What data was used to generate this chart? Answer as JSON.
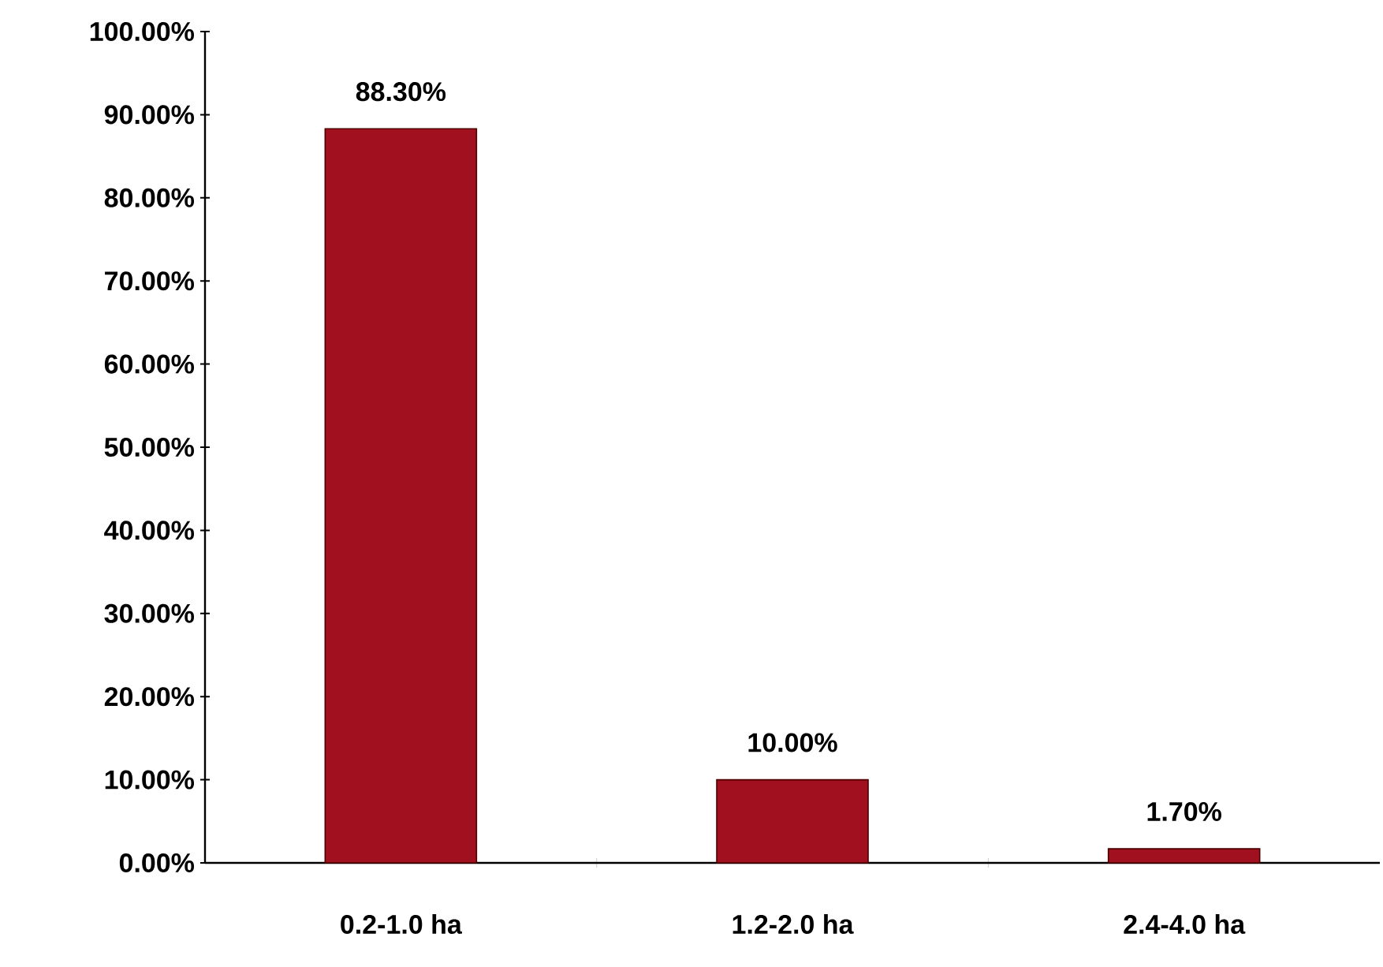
{
  "chart_data": {
    "type": "bar",
    "categories": [
      "0.2-1.0 ha",
      "1.2-2.0 ha",
      "2.4-4.0 ha"
    ],
    "values": [
      88.3,
      10.0,
      1.7
    ],
    "value_labels": [
      "88.30%",
      "10.00%",
      "1.70%"
    ],
    "color": "#a0101e",
    "ylim": [
      0,
      100
    ],
    "yticks": [
      {
        "value": 0,
        "label": "0.00%"
      },
      {
        "value": 10,
        "label": "10.00%"
      },
      {
        "value": 20,
        "label": "20.00%"
      },
      {
        "value": 30,
        "label": "30.00%"
      },
      {
        "value": 40,
        "label": "40.00%"
      },
      {
        "value": 50,
        "label": "50.00%"
      },
      {
        "value": 60,
        "label": "60.00%"
      },
      {
        "value": 70,
        "label": "70.00%"
      },
      {
        "value": 80,
        "label": "80.00%"
      },
      {
        "value": 90,
        "label": "90.00%"
      },
      {
        "value": 100,
        "label": "100.00%"
      }
    ],
    "grid": false
  }
}
